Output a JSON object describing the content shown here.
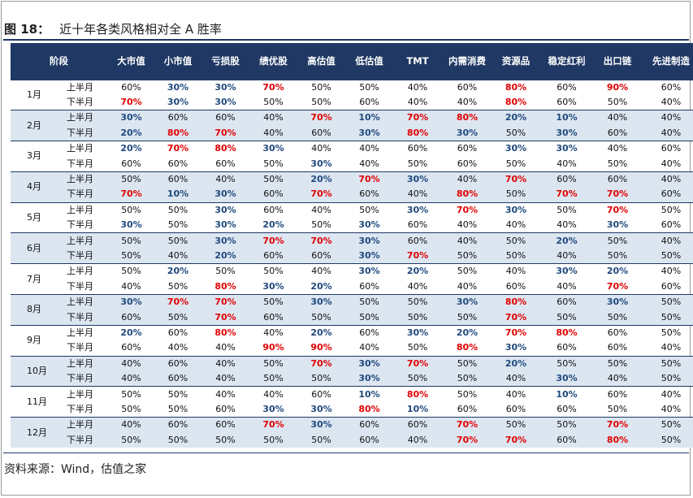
{
  "figure": {
    "number": "图 18：",
    "title": "近十年各类风格相对全 A 胜率"
  },
  "source": "资料来源：Wind，估值之家",
  "colors": {
    "header_bg": "#1f3864",
    "shade": "#dce6f1",
    "high": "#e00000",
    "low": "#1f497d"
  },
  "table": {
    "header": {
      "period": "阶段",
      "columns": [
        "大市值",
        "小市值",
        "亏损股",
        "绩优股",
        "高估值",
        "低估值",
        "TMT",
        "内需消费",
        "资源品",
        "稳定红利",
        "出口链",
        "先进制造"
      ]
    },
    "months": [
      {
        "month": "1月",
        "rows": [
          {
            "half": "上半月",
            "values": [
              "60%",
              "30%",
              "30%",
              "70%",
              "50%",
              "50%",
              "40%",
              "60%",
              "80%",
              "60%",
              "90%",
              "60%"
            ]
          },
          {
            "half": "下半月",
            "values": [
              "70%",
              "30%",
              "30%",
              "50%",
              "50%",
              "60%",
              "40%",
              "40%",
              "80%",
              "60%",
              "50%",
              "40%"
            ]
          }
        ]
      },
      {
        "month": "2月",
        "rows": [
          {
            "half": "上半月",
            "values": [
              "30%",
              "60%",
              "60%",
              "40%",
              "70%",
              "10%",
              "70%",
              "80%",
              "20%",
              "10%",
              "40%",
              "40%"
            ]
          },
          {
            "half": "下半月",
            "values": [
              "20%",
              "80%",
              "70%",
              "40%",
              "60%",
              "30%",
              "80%",
              "30%",
              "50%",
              "30%",
              "60%",
              "40%"
            ]
          }
        ]
      },
      {
        "month": "3月",
        "rows": [
          {
            "half": "上半月",
            "values": [
              "20%",
              "70%",
              "80%",
              "30%",
              "40%",
              "40%",
              "60%",
              "60%",
              "30%",
              "30%",
              "40%",
              "60%"
            ]
          },
          {
            "half": "下半月",
            "values": [
              "60%",
              "60%",
              "60%",
              "50%",
              "30%",
              "40%",
              "50%",
              "60%",
              "50%",
              "40%",
              "50%",
              "40%"
            ]
          }
        ]
      },
      {
        "month": "4月",
        "rows": [
          {
            "half": "上半月",
            "values": [
              "50%",
              "60%",
              "40%",
              "50%",
              "20%",
              "70%",
              "30%",
              "40%",
              "70%",
              "60%",
              "60%",
              "40%"
            ]
          },
          {
            "half": "下半月",
            "values": [
              "70%",
              "10%",
              "30%",
              "60%",
              "70%",
              "60%",
              "40%",
              "80%",
              "50%",
              "70%",
              "70%",
              "60%"
            ]
          }
        ]
      },
      {
        "month": "5月",
        "rows": [
          {
            "half": "上半月",
            "values": [
              "50%",
              "50%",
              "30%",
              "60%",
              "40%",
              "50%",
              "30%",
              "70%",
              "30%",
              "50%",
              "70%",
              "50%"
            ]
          },
          {
            "half": "下半月",
            "values": [
              "30%",
              "50%",
              "30%",
              "20%",
              "50%",
              "30%",
              "60%",
              "40%",
              "40%",
              "40%",
              "30%",
              "60%"
            ]
          }
        ]
      },
      {
        "month": "6月",
        "rows": [
          {
            "half": "上半月",
            "values": [
              "50%",
              "50%",
              "30%",
              "70%",
              "70%",
              "30%",
              "60%",
              "40%",
              "50%",
              "20%",
              "50%",
              "40%"
            ]
          },
          {
            "half": "下半月",
            "values": [
              "50%",
              "40%",
              "20%",
              "60%",
              "60%",
              "30%",
              "70%",
              "50%",
              "50%",
              "40%",
              "50%",
              "50%"
            ]
          }
        ]
      },
      {
        "month": "7月",
        "rows": [
          {
            "half": "上半月",
            "values": [
              "50%",
              "20%",
              "50%",
              "50%",
              "40%",
              "30%",
              "20%",
              "50%",
              "40%",
              "30%",
              "20%",
              "40%"
            ]
          },
          {
            "half": "下半月",
            "values": [
              "40%",
              "50%",
              "80%",
              "30%",
              "20%",
              "60%",
              "40%",
              "40%",
              "60%",
              "40%",
              "70%",
              "60%"
            ]
          }
        ]
      },
      {
        "month": "8月",
        "rows": [
          {
            "half": "上半月",
            "values": [
              "30%",
              "70%",
              "70%",
              "50%",
              "30%",
              "50%",
              "50%",
              "30%",
              "80%",
              "60%",
              "30%",
              "50%"
            ]
          },
          {
            "half": "下半月",
            "values": [
              "60%",
              "50%",
              "70%",
              "60%",
              "50%",
              "50%",
              "50%",
              "50%",
              "70%",
              "50%",
              "50%",
              "50%"
            ]
          }
        ]
      },
      {
        "month": "9月",
        "rows": [
          {
            "half": "上半月",
            "values": [
              "20%",
              "60%",
              "80%",
              "40%",
              "20%",
              "60%",
              "30%",
              "20%",
              "70%",
              "80%",
              "60%",
              "50%"
            ]
          },
          {
            "half": "下半月",
            "values": [
              "60%",
              "40%",
              "40%",
              "90%",
              "90%",
              "40%",
              "50%",
              "80%",
              "30%",
              "60%",
              "60%",
              "40%"
            ]
          }
        ]
      },
      {
        "month": "10月",
        "rows": [
          {
            "half": "上半月",
            "values": [
              "40%",
              "60%",
              "40%",
              "50%",
              "70%",
              "30%",
              "70%",
              "50%",
              "20%",
              "50%",
              "50%",
              "50%"
            ]
          },
          {
            "half": "下半月",
            "values": [
              "40%",
              "60%",
              "40%",
              "50%",
              "50%",
              "30%",
              "50%",
              "50%",
              "40%",
              "30%",
              "40%",
              "50%"
            ]
          }
        ]
      },
      {
        "month": "11月",
        "rows": [
          {
            "half": "上半月",
            "values": [
              "50%",
              "50%",
              "40%",
              "40%",
              "60%",
              "10%",
              "80%",
              "50%",
              "40%",
              "10%",
              "60%",
              "40%"
            ]
          },
          {
            "half": "下半月",
            "values": [
              "50%",
              "50%",
              "60%",
              "30%",
              "30%",
              "80%",
              "10%",
              "60%",
              "60%",
              "60%",
              "50%",
              "40%"
            ]
          }
        ]
      },
      {
        "month": "12月",
        "rows": [
          {
            "half": "上半月",
            "values": [
              "40%",
              "60%",
              "60%",
              "70%",
              "30%",
              "60%",
              "60%",
              "70%",
              "50%",
              "50%",
              "70%",
              "50%"
            ]
          },
          {
            "half": "下半月",
            "values": [
              "50%",
              "50%",
              "50%",
              "50%",
              "50%",
              "60%",
              "40%",
              "70%",
              "70%",
              "60%",
              "80%",
              "50%"
            ]
          }
        ]
      }
    ]
  }
}
